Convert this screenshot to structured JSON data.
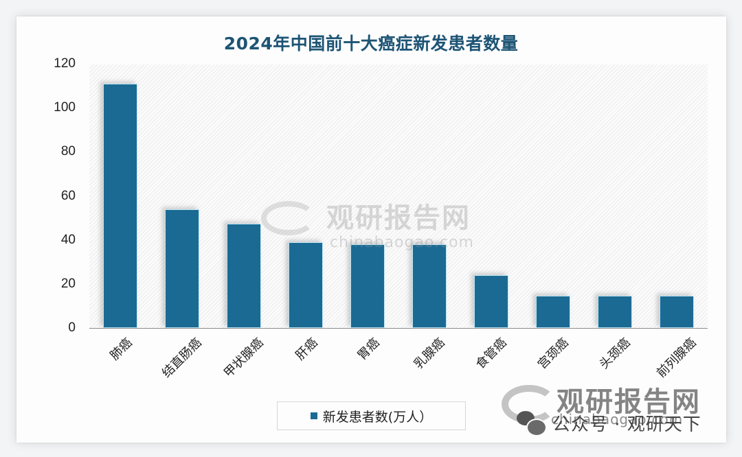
{
  "title": "2024年中国前十大癌症新发患者数量",
  "colors": {
    "bar": "#1b6a93",
    "bar_border": "#bfe8f6",
    "title": "#1d5474"
  },
  "legend": {
    "label": "新发患者数(万人）"
  },
  "watermark": {
    "brand_cn": "观研报告网",
    "brand_en": "chinabaogao.com",
    "wechat_label": "公众号 · 观研天下"
  },
  "chart_data": {
    "type": "bar",
    "title": "2024年中国前十大癌症新发患者数量",
    "xlabel": "",
    "ylabel": "",
    "categories": [
      "肺癌",
      "结直肠癌",
      "甲状腺癌",
      "肝癌",
      "胃癌",
      "乳腺癌",
      "食管癌",
      "宫颈癌",
      "头颈癌",
      "前列腺癌"
    ],
    "series": [
      {
        "name": "新发患者数(万人）",
        "values": [
          111,
          54,
          47.5,
          39,
          38,
          38,
          24,
          14.5,
          14.5,
          14.5
        ]
      }
    ],
    "ylim": [
      0,
      120
    ],
    "yticks": [
      0,
      20,
      40,
      60,
      80,
      100,
      120
    ],
    "ytick_labels": [
      "0",
      "20",
      "40",
      "60",
      "80",
      "100",
      "120"
    ],
    "grid": false,
    "legend_position": "bottom"
  }
}
